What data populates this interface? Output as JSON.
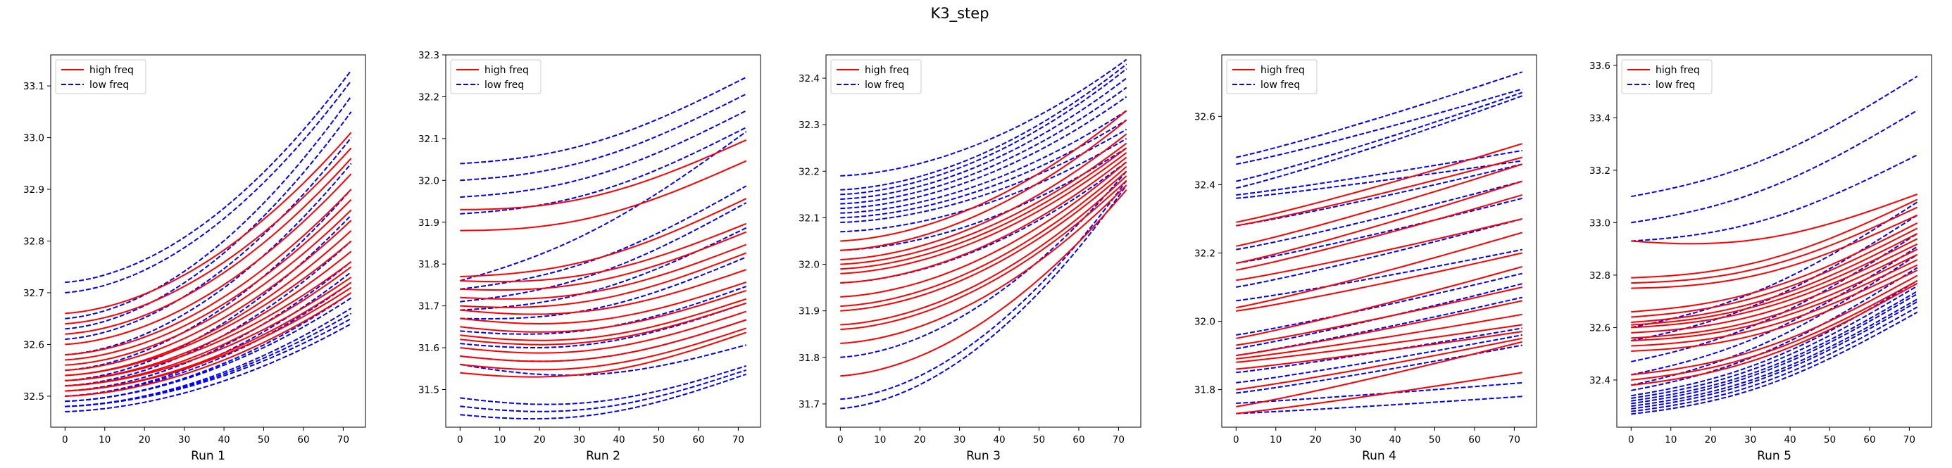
{
  "figure": {
    "title": "K3_step"
  },
  "legend": {
    "high_label": "high freq",
    "low_label": "low freq",
    "location": "upper-left"
  },
  "colors": {
    "high": "#ff0000",
    "low": "#0000ff"
  },
  "chart_data": [
    {
      "type": "line",
      "xlabel": "Run 1",
      "x": [
        0,
        72
      ],
      "xticks": [
        0,
        10,
        20,
        30,
        40,
        50,
        60,
        70
      ],
      "yticks": [
        32.5,
        32.6,
        32.7,
        32.8,
        32.9,
        33.0,
        33.1
      ],
      "xlim": [
        -3.6,
        75.6
      ],
      "ylim": [
        32.44,
        33.16
      ],
      "series_kind": "growth",
      "high": {
        "start": [
          32.66,
          32.64,
          32.62,
          32.6,
          32.58,
          32.57,
          32.56,
          32.55,
          32.54,
          32.54,
          32.53,
          32.53,
          32.52,
          32.52,
          32.51,
          32.51,
          32.5
        ],
        "end": [
          33.01,
          32.98,
          32.96,
          32.93,
          32.9,
          32.88,
          32.86,
          32.84,
          32.82,
          32.8,
          32.78,
          32.76,
          32.75,
          32.73,
          32.72,
          32.71,
          32.7
        ]
      },
      "low": {
        "start": [
          32.72,
          32.7,
          32.65,
          32.63,
          32.61,
          32.58,
          32.55,
          32.53,
          32.52,
          32.51,
          32.5,
          32.5,
          32.49,
          32.49,
          32.48,
          32.48,
          32.48,
          32.47
        ],
        "end": [
          33.13,
          33.11,
          33.08,
          33.05,
          33.0,
          32.95,
          32.9,
          32.85,
          32.8,
          32.76,
          32.74,
          32.72,
          32.7,
          32.69,
          32.67,
          32.66,
          32.65,
          32.64
        ]
      }
    },
    {
      "type": "line",
      "xlabel": "Run 2",
      "x": [
        0,
        72
      ],
      "xticks": [
        0,
        10,
        20,
        30,
        40,
        50,
        60,
        70
      ],
      "yticks": [
        31.5,
        31.6,
        31.7,
        31.8,
        31.9,
        32.0,
        32.1,
        32.2,
        32.3
      ],
      "xlim": [
        -3.6,
        75.6
      ],
      "ylim": [
        31.41,
        32.3
      ],
      "series_kind": "dip",
      "high": {
        "start": [
          31.93,
          31.88,
          31.77,
          31.76,
          31.74,
          31.72,
          31.7,
          31.69,
          31.67,
          31.65,
          31.63,
          31.62,
          31.6,
          31.58,
          31.56,
          31.54
        ],
        "end": [
          32.11,
          32.06,
          31.97,
          31.91,
          31.89,
          31.86,
          31.84,
          31.8,
          31.77,
          31.75,
          31.73,
          31.72,
          31.7,
          31.68,
          31.66,
          31.65
        ]
      },
      "low": {
        "start": [
          32.04,
          32.0,
          31.96,
          31.92,
          31.76,
          31.74,
          31.71,
          31.69,
          31.67,
          31.64,
          31.61,
          31.58,
          31.56,
          31.48,
          31.46,
          31.44
        ],
        "end": [
          32.26,
          32.22,
          32.18,
          32.14,
          32.13,
          32.0,
          31.96,
          31.9,
          31.83,
          31.76,
          31.72,
          31.68,
          31.62,
          31.57,
          31.56,
          31.55
        ]
      }
    },
    {
      "type": "line",
      "xlabel": "Run 3",
      "x": [
        0,
        72
      ],
      "xticks": [
        0,
        10,
        20,
        30,
        40,
        50,
        60,
        70
      ],
      "yticks": [
        31.7,
        31.8,
        31.9,
        32.0,
        32.1,
        32.2,
        32.3,
        32.4
      ],
      "xlim": [
        -3.6,
        75.6
      ],
      "ylim": [
        31.65,
        32.45
      ],
      "series_kind": "growth",
      "high": {
        "start": [
          32.05,
          32.03,
          32.01,
          32.0,
          31.99,
          31.98,
          31.96,
          31.93,
          31.91,
          31.9,
          31.87,
          31.86,
          31.83,
          31.76
        ],
        "end": [
          32.33,
          32.31,
          32.28,
          32.26,
          32.25,
          32.24,
          32.23,
          32.22,
          32.21,
          32.2,
          32.19,
          32.18,
          32.17,
          32.16
        ]
      },
      "low": {
        "start": [
          32.19,
          32.16,
          32.15,
          32.14,
          32.13,
          32.12,
          32.11,
          32.1,
          32.09,
          32.07,
          32.03,
          31.96,
          31.8,
          31.71,
          31.69
        ],
        "end": [
          32.44,
          32.43,
          32.42,
          32.4,
          32.38,
          32.36,
          32.33,
          32.31,
          32.29,
          32.27,
          32.25,
          32.22,
          32.2,
          32.18,
          32.17
        ]
      }
    },
    {
      "type": "line",
      "xlabel": "Run 4",
      "x": [
        0,
        72
      ],
      "xticks": [
        0,
        10,
        20,
        30,
        40,
        50,
        60,
        70
      ],
      "yticks": [
        31.8,
        32.0,
        32.2,
        32.4,
        32.6
      ],
      "xlim": [
        -3.6,
        75.6
      ],
      "ylim": [
        31.69,
        32.78
      ],
      "series_kind": "flat",
      "high": {
        "start": [
          32.29,
          32.28,
          32.22,
          32.17,
          32.15,
          32.12,
          32.04,
          32.03,
          31.95,
          31.93,
          31.9,
          31.89,
          31.88,
          31.86,
          31.8,
          31.75,
          31.73
        ],
        "end": [
          32.52,
          32.48,
          32.46,
          32.41,
          32.37,
          32.3,
          32.26,
          32.2,
          32.16,
          32.1,
          32.06,
          32.02,
          31.99,
          31.97,
          31.95,
          31.94,
          31.85
        ]
      },
      "low": {
        "start": [
          32.48,
          32.46,
          32.41,
          32.39,
          32.37,
          32.36,
          32.28,
          32.21,
          32.17,
          32.1,
          32.06,
          31.96,
          31.92,
          31.9,
          31.85,
          31.82,
          31.79,
          31.76,
          31.73
        ],
        "end": [
          32.73,
          32.68,
          32.67,
          32.66,
          32.5,
          32.47,
          32.46,
          32.41,
          32.36,
          32.3,
          32.21,
          32.14,
          32.11,
          32.07,
          31.98,
          31.96,
          31.93,
          31.82,
          31.78
        ]
      }
    },
    {
      "type": "line",
      "xlabel": "Run 5",
      "x": [
        0,
        72
      ],
      "xticks": [
        0,
        10,
        20,
        30,
        40,
        50,
        60,
        70
      ],
      "yticks": [
        32.4,
        32.6,
        32.8,
        33.0,
        33.2,
        33.4,
        33.6
      ],
      "xlim": [
        -3.6,
        75.6
      ],
      "ylim": [
        32.22,
        33.64
      ],
      "series_kind": "dip",
      "high": {
        "start": [
          32.93,
          32.79,
          32.77,
          32.75,
          32.66,
          32.64,
          32.62,
          32.61,
          32.6,
          32.58,
          32.56,
          32.55,
          32.53,
          32.51,
          32.42,
          32.4,
          32.38
        ],
        "end": [
          33.13,
          33.11,
          33.08,
          33.05,
          33.02,
          33.0,
          32.98,
          32.96,
          32.94,
          32.92,
          32.9,
          32.88,
          32.86,
          32.84,
          32.82,
          32.8,
          32.79
        ]
      },
      "low": {
        "start": [
          33.1,
          33.0,
          32.93,
          32.6,
          32.55,
          32.47,
          32.42,
          32.38,
          32.36,
          32.34,
          32.33,
          32.32,
          32.31,
          32.3,
          32.29,
          32.28,
          32.27
        ],
        "end": [
          33.58,
          33.45,
          33.28,
          33.1,
          33.05,
          32.98,
          32.93,
          32.9,
          32.85,
          32.8,
          32.78,
          32.76,
          32.75,
          32.73,
          32.72,
          32.7,
          32.68
        ]
      }
    }
  ]
}
